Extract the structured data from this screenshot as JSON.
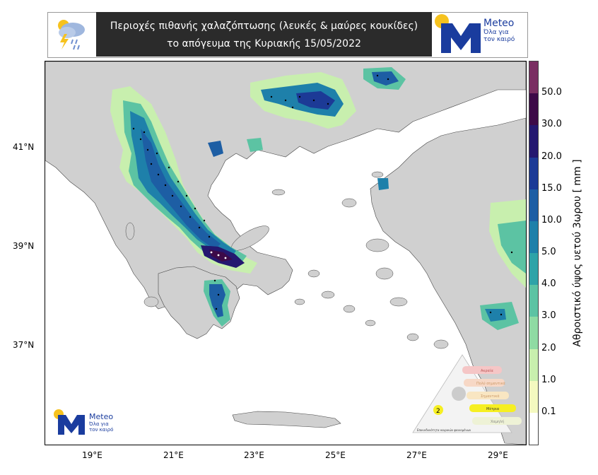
{
  "header": {
    "title_line1": "Περιοχές πιθανής χαλαζόπτωσης (λευκές & μαύρες κουκίδες)",
    "title_line2": "το απόγευμα της Κυριακής 15/05/2022",
    "weather_icon": "thunderstorm-hail-icon"
  },
  "logo_top": {
    "name": "Meteo",
    "sub1": "Όλα για",
    "sub2": "τον καιρό"
  },
  "logo_map": {
    "name": "Meteo",
    "sub1": "Όλα για",
    "sub2": "τον καιρό"
  },
  "axes": {
    "y_ticks": [
      "41°N",
      "39°N",
      "37°N"
    ],
    "x_ticks": [
      "19°E",
      "21°E",
      "23°E",
      "25°E",
      "27°E",
      "29°E"
    ]
  },
  "colorbar": {
    "title": "Αθροιστικό ύψος υετού 3ωρου [ mm ]",
    "levels": [
      "0.1",
      "1.0",
      "2.0",
      "3.0",
      "4.0",
      "5.0",
      "10.0",
      "15.0",
      "20.0",
      "30.0",
      "50.0"
    ],
    "colors": [
      "#ffffff",
      "#f4f9c0",
      "#c8efae",
      "#8fdba3",
      "#5cc3a3",
      "#2ea3a8",
      "#1e80aa",
      "#1d5ea4",
      "#1c3a96",
      "#241870",
      "#3d0a48",
      "#7a2f62"
    ]
  },
  "warning_legend": {
    "levels": [
      "Ακραία",
      "Πολύ σημαντικά",
      "Σημαντικά",
      "Μέτρια",
      "Χαμηλή"
    ],
    "active_level": "2",
    "caption": "Επικινδυνότητα καιρικών φαινομένων"
  }
}
